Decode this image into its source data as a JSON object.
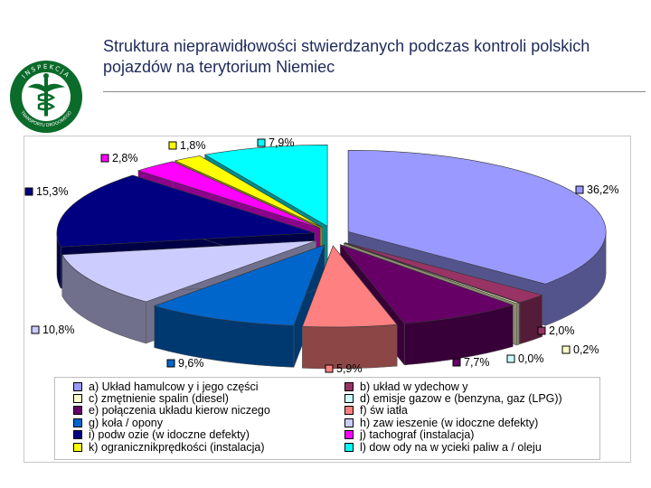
{
  "title": "Struktura nieprawidłowości stwierdzanych podczas kontroli polskich pojazdów na terytorium Niemiec",
  "logo": {
    "top_text": "INSPEKCJA",
    "bottom_text": "TRANSPORTU DROGOWEGO",
    "color": "#0a6b2a"
  },
  "chart_data": {
    "type": "pie",
    "style": "3d-exploded",
    "legend_position": "bottom",
    "slices": [
      {
        "label": "a) Układ hamulcowy i jego części",
        "legend": "a) Układ hamulcow y i jego części",
        "value": 36.2,
        "value_label": "36,2%",
        "color": "#9999ff"
      },
      {
        "label": "b) układ wydechowy",
        "legend": "b) układ w ydechow y",
        "value": 2.0,
        "value_label": "2,0%",
        "color": "#993366"
      },
      {
        "label": "c) zmętnienie spalin (diesel)",
        "legend": "c) zmętnienie spalin (diesel)",
        "value": 0.2,
        "value_label": "0,2%",
        "color": "#ffffcc"
      },
      {
        "label": "d) emisje gazowe (benzyna, gaz (LPG))",
        "legend": "d) emisje gazow e (benzyna, gaz (LPG))",
        "value": 0.0,
        "value_label": "0,0%",
        "color": "#ccffff"
      },
      {
        "label": "e) połączenia układu kierowniczego",
        "legend": "e) połączenia układu kierow niczego",
        "value": 7.7,
        "value_label": "7,7%",
        "color": "#660066"
      },
      {
        "label": "f) światła",
        "legend": "f) św iatła",
        "value": 5.9,
        "value_label": "5,9%",
        "color": "#ff8080"
      },
      {
        "label": "g) koła / opony",
        "legend": "g) koła / opony",
        "value": 9.6,
        "value_label": "9,6%",
        "color": "#0066cc"
      },
      {
        "label": "h) zawieszenie (widoczne defekty)",
        "legend": "h) zaw ieszenie (w idoczne defekty)",
        "value": 10.8,
        "value_label": "10,8%",
        "color": "#ccccff"
      },
      {
        "label": "i) podwozie (widoczne defekty)",
        "legend": "i) podw ozie (w idoczne defekty)",
        "value": 15.3,
        "value_label": "15,3%",
        "color": "#000080"
      },
      {
        "label": "j) tachograf (instalacja)",
        "legend": "j) tachograf (instalacja)",
        "value": 2.8,
        "value_label": "2,8%",
        "color": "#ff00ff"
      },
      {
        "label": "k) ogranicznik prędkości (instalacja)",
        "legend": "k) ogranicznikprędkości (instalacja)",
        "value": 1.8,
        "value_label": "1,8%",
        "color": "#ffff00"
      },
      {
        "label": "l) dowody na wycieki paliwa / oleju",
        "legend": "l) dow ody na w ycieki paliw a / oleju",
        "value": 7.9,
        "value_label": "7,9%",
        "color": "#00ffff"
      }
    ]
  }
}
